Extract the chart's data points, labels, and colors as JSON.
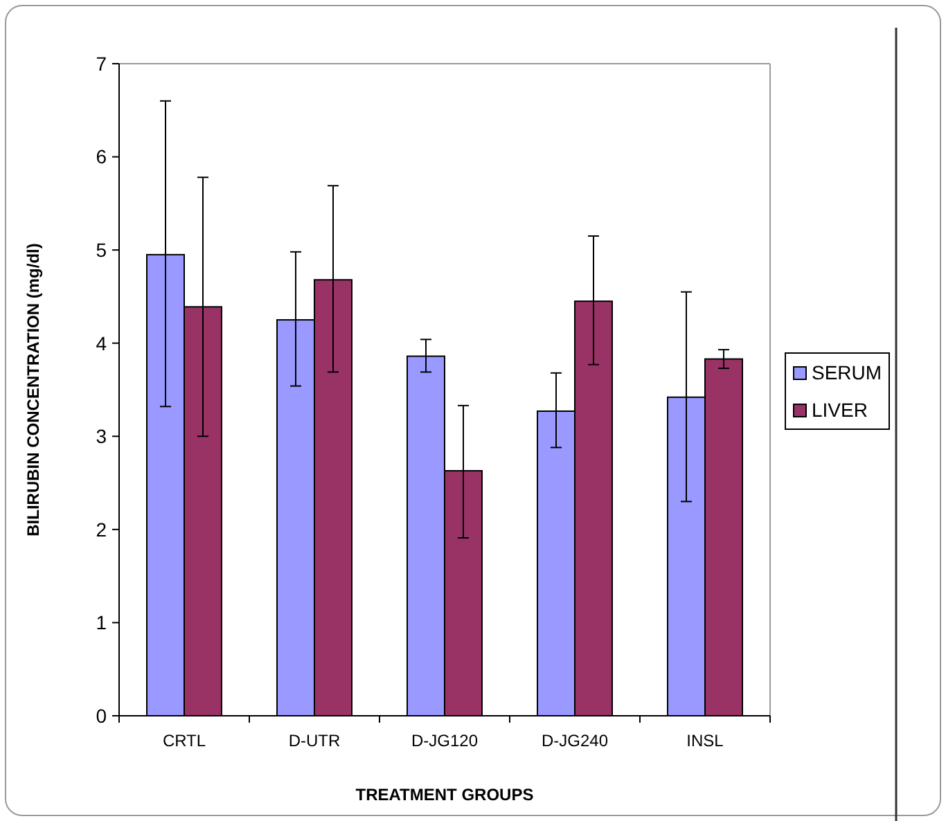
{
  "chart_data": {
    "type": "bar",
    "xlabel": "TREATMENT GROUPS",
    "ylabel": "BILIRUBIN CONCENTRATION (mg/dl)",
    "categories": [
      "CRTL",
      "D-UTR",
      "D-JG120",
      "D-JG240",
      "INSL"
    ],
    "series": [
      {
        "name": "SERUM",
        "color": "#9999ff",
        "values": [
          4.95,
          4.25,
          3.86,
          3.27,
          3.42
        ],
        "errors": [
          [
            3.32,
            6.6
          ],
          [
            3.54,
            4.98
          ],
          [
            3.69,
            4.04
          ],
          [
            2.88,
            3.68
          ],
          [
            2.3,
            4.55
          ]
        ]
      },
      {
        "name": "LIVER",
        "color": "#993366",
        "values": [
          4.39,
          4.68,
          2.63,
          4.45,
          3.83
        ],
        "errors": [
          [
            3.0,
            5.78
          ],
          [
            3.69,
            5.69
          ],
          [
            1.91,
            3.33
          ],
          [
            3.77,
            5.15
          ],
          [
            3.73,
            3.93
          ]
        ]
      }
    ],
    "ylim": [
      0,
      7
    ],
    "yticks": [
      0,
      1,
      2,
      3,
      4,
      5,
      6,
      7
    ],
    "grid": false,
    "legend": "right"
  }
}
